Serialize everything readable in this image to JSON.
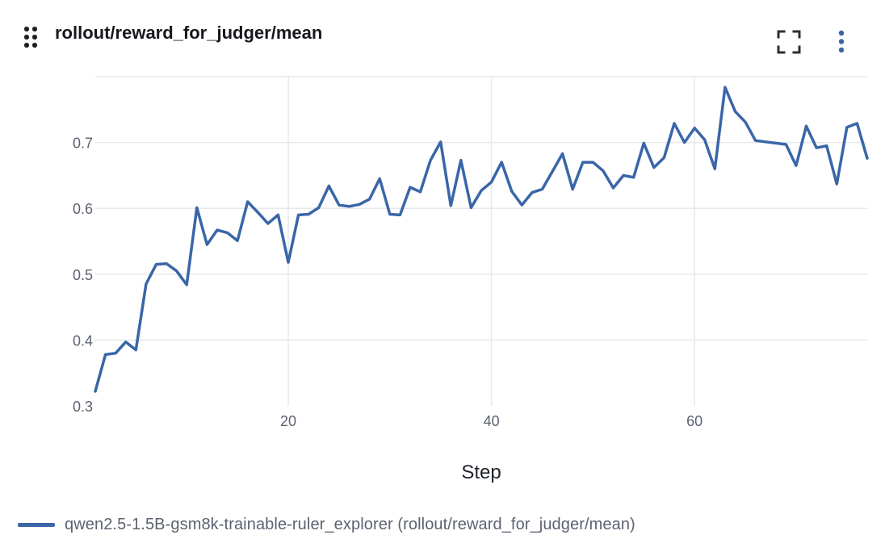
{
  "panel": {
    "title": "rollout/reward_for_judger/mean",
    "icons": {
      "drag": "drag-handle-icon",
      "fullscreen": "fullscreen-icon",
      "more": "more-vertical-icon"
    }
  },
  "colors": {
    "series": "#3a66a8",
    "grid": "#e6e8ec",
    "tick_text": "#5b6270"
  },
  "chart_data": {
    "type": "line",
    "xlabel": "Step",
    "ylabel": "",
    "xlim": [
      1,
      77
    ],
    "ylim": [
      0.3,
      0.8
    ],
    "xticks": [
      20,
      40,
      60
    ],
    "yticks": [
      0.3,
      0.4,
      0.5,
      0.6,
      0.7
    ],
    "xtick_labels": [
      "20",
      "40",
      "60"
    ],
    "ytick_labels": [
      "0.3",
      "0.4",
      "0.5",
      "0.6",
      "0.7"
    ],
    "grid": true,
    "legend_position": "bottom-left",
    "series": [
      {
        "name": "qwen2.5-1.5B-gsm8k-trainable-ruler_explorer (rollout/reward_for_judger/mean)",
        "x": [
          1,
          2,
          3,
          4,
          5,
          6,
          7,
          8,
          9,
          10,
          11,
          12,
          13,
          14,
          15,
          16,
          17,
          18,
          19,
          20,
          21,
          22,
          23,
          24,
          25,
          26,
          27,
          28,
          29,
          30,
          31,
          32,
          33,
          34,
          35,
          36,
          37,
          38,
          39,
          40,
          41,
          42,
          43,
          44,
          45,
          46,
          47,
          48,
          49,
          50,
          51,
          52,
          53,
          54,
          55,
          56,
          57,
          58,
          59,
          60,
          61,
          62,
          63,
          64,
          65,
          66,
          67,
          68,
          69,
          70,
          71,
          72,
          73,
          74,
          75,
          76,
          77
        ],
        "y": [
          0.322,
          0.378,
          0.38,
          0.397,
          0.385,
          0.485,
          0.515,
          0.516,
          0.505,
          0.484,
          0.601,
          0.545,
          0.567,
          0.563,
          0.551,
          0.61,
          0.594,
          0.577,
          0.59,
          0.518,
          0.59,
          0.591,
          0.601,
          0.634,
          0.605,
          0.603,
          0.606,
          0.614,
          0.645,
          0.591,
          0.59,
          0.632,
          0.625,
          0.673,
          0.701,
          0.604,
          0.673,
          0.601,
          0.627,
          0.64,
          0.67,
          0.626,
          0.605,
          0.624,
          0.629,
          0.656,
          0.683,
          0.629,
          0.67,
          0.67,
          0.657,
          0.631,
          0.65,
          0.647,
          0.699,
          0.662,
          0.677,
          0.729,
          0.7,
          0.722,
          0.704,
          0.66,
          0.784,
          0.747,
          0.731,
          0.703,
          0.701,
          0.699,
          0.697,
          0.665,
          0.725,
          0.692,
          0.695,
          0.637,
          0.723,
          0.729,
          0.676
        ]
      }
    ]
  }
}
